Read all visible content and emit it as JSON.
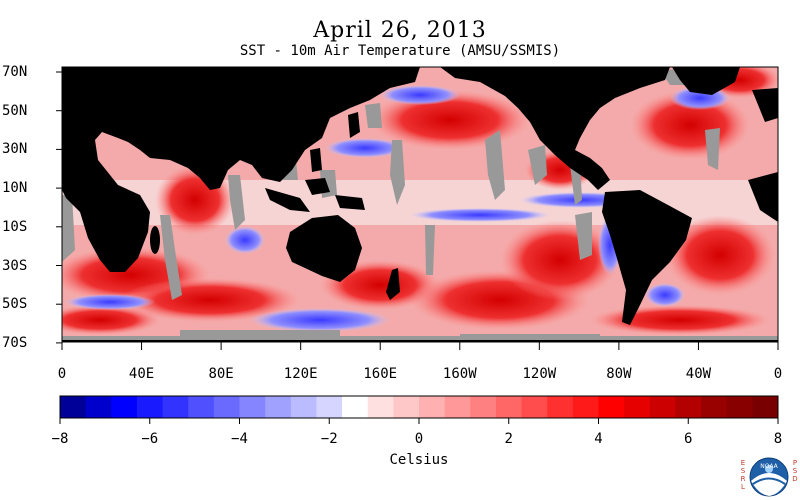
{
  "map": {
    "title": "April 26, 2013",
    "subtitle": "SST - 10m Air Temperature (AMSU/SSMIS)",
    "lat_labels": [
      "70N",
      "50N",
      "30N",
      "10N",
      "10S",
      "30S",
      "50S",
      "70S"
    ],
    "lon_labels": [
      "0",
      "40E",
      "80E",
      "120E",
      "160E",
      "160W",
      "120W",
      "80W",
      "40W",
      "0"
    ],
    "colors": {
      "land": "#000000",
      "ice_missing": "#999999",
      "warm": "#e8282a",
      "cool": "#5a5aff"
    }
  },
  "colorbar": {
    "min": -8,
    "max": 8,
    "labels": [
      "−8",
      "−6",
      "−4",
      "−2",
      "0",
      "2",
      "4",
      "6",
      "8"
    ],
    "unit": "Celsius",
    "colors": [
      "#000099",
      "#0000cc",
      "#0000ff",
      "#1a1aff",
      "#3333ff",
      "#5050ff",
      "#6a6aff",
      "#8585ff",
      "#a0a0ff",
      "#bbbbff",
      "#d5d5ff",
      "#ffffff",
      "#ffe0e0",
      "#ffc8c8",
      "#ffb0b0",
      "#ff9898",
      "#ff8080",
      "#ff6666",
      "#ff4c4c",
      "#ff3030",
      "#ff1a1a",
      "#ff0000",
      "#e60000",
      "#cc0000",
      "#b30000",
      "#990000",
      "#880000",
      "#780000"
    ]
  },
  "logo": {
    "org_left": [
      "E",
      "S",
      "R",
      "L"
    ],
    "org_right": [
      "P",
      "S",
      "D"
    ],
    "center": "NOAA"
  }
}
